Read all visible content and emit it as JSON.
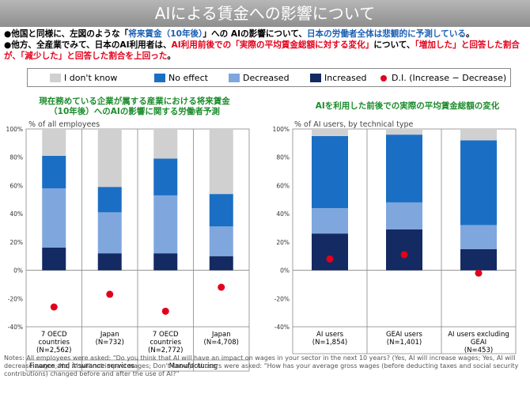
{
  "title": "AIによる賃金への影響について",
  "bullets": [
    {
      "parts": [
        {
          "t": "●他国と同様に、左図のような「"
        },
        {
          "t": "将来賃金（10年後）",
          "c": "blue"
        },
        {
          "t": "」への AIの影響について、"
        },
        {
          "t": "日本の労働者全体は悲観的に予測している",
          "c": "blue"
        },
        {
          "t": "。"
        }
      ]
    },
    {
      "parts": [
        {
          "t": "●他方、全産業でみて、日本のAI利用者は、"
        },
        {
          "t": "AI利用前後での「実際の平均賃金総額に対する変化」",
          "c": "red"
        },
        {
          "t": "について、"
        },
        {
          "t": "「増加した」と回答した割合が、「減少した」と回答した割合を上回った",
          "c": "red"
        },
        {
          "t": "。"
        }
      ]
    }
  ],
  "legend": [
    {
      "label": "I don't know",
      "color": "#d0d0d0",
      "kind": "box"
    },
    {
      "label": "No effect",
      "color": "#1a6fc4",
      "kind": "box"
    },
    {
      "label": "Decreased",
      "color": "#7fa7dd",
      "kind": "box"
    },
    {
      "label": "Increased",
      "color": "#142a63",
      "kind": "box"
    },
    {
      "label": "D.I. (Increase − Decrease)",
      "color": "#e3001b",
      "kind": "dot"
    }
  ],
  "left_subtitle": "現在務めている企業が属する産業における将来賃金（10年後）へのAIの影響に関する労働者予測",
  "right_subtitle": "AIを利用した前後での実際の平均賃金総額の変化",
  "left_unit": "% of all employees",
  "right_unit": "% of AI users, by technical type",
  "chart_data": [
    {
      "type": "bar",
      "stacked": true,
      "ylim": [
        -40,
        100
      ],
      "yticks": [
        "-40%",
        "-20%",
        "0%",
        "20%",
        "40%",
        "60%",
        "80%",
        "100%"
      ],
      "categories": [
        "7 OECD countries (N=2,562)",
        "Japan (N=732)",
        "7 OECD countries (N=2,772)",
        "Japan (N=4,708)"
      ],
      "cat_lines": [
        [
          "7 OECD",
          "countries",
          "(N=2,562)"
        ],
        [
          "Japan",
          "(N=732)"
        ],
        [
          "7 OECD",
          "countries",
          "(N=2,772)"
        ],
        [
          "Japan",
          "(N=4,708)"
        ]
      ],
      "groups": [
        "Finance and insurance services",
        "Manufacturing"
      ],
      "series": [
        {
          "name": "Increased",
          "color": "#142a63",
          "values": [
            16,
            12,
            12,
            10
          ]
        },
        {
          "name": "Decreased",
          "color": "#7fa7dd",
          "values": [
            42,
            29,
            41,
            21
          ]
        },
        {
          "name": "No effect",
          "color": "#1a6fc4",
          "values": [
            23,
            18,
            26,
            23
          ]
        },
        {
          "name": "I don't know",
          "color": "#d0d0d0",
          "values": [
            19,
            41,
            21,
            46
          ]
        }
      ],
      "di": [
        -26,
        -17,
        -29,
        -12
      ]
    },
    {
      "type": "bar",
      "stacked": true,
      "ylim": [
        -40,
        100
      ],
      "yticks": [
        "-40%",
        "-20%",
        "0%",
        "20%",
        "40%",
        "60%",
        "80%",
        "100%"
      ],
      "categories": [
        "AI users (N=1,854)",
        "GEAI users (N=1,401)",
        "AI users excluding GEAI (N=453)"
      ],
      "cat_lines": [
        [
          "AI users",
          "(N=1,854)"
        ],
        [
          "GEAI users",
          "(N=1,401)"
        ],
        [
          "AI users excluding",
          "GEAI",
          "(N=453)"
        ]
      ],
      "series": [
        {
          "name": "Increased",
          "color": "#142a63",
          "values": [
            26,
            29,
            15
          ]
        },
        {
          "name": "Decreased",
          "color": "#7fa7dd",
          "values": [
            18,
            19,
            17
          ]
        },
        {
          "name": "No effect",
          "color": "#1a6fc4",
          "values": [
            51,
            48,
            60
          ]
        },
        {
          "name": "I don't know",
          "color": "#d0d0d0",
          "values": [
            5,
            4,
            8
          ]
        }
      ],
      "di": [
        8,
        11,
        -2
      ]
    }
  ],
  "notes": "Notes: All employees were asked: “Do you think that AI will have an impact on wages in your sector in the next 10 years? (Yes, AI will increase wages; Yes, AI will decrease wages; No, AI will not impact wages; Don't know)”  AI users  were asked: “How has your average gross wages (before deducting taxes and social security contributions) changed before and after the use of AI?”"
}
